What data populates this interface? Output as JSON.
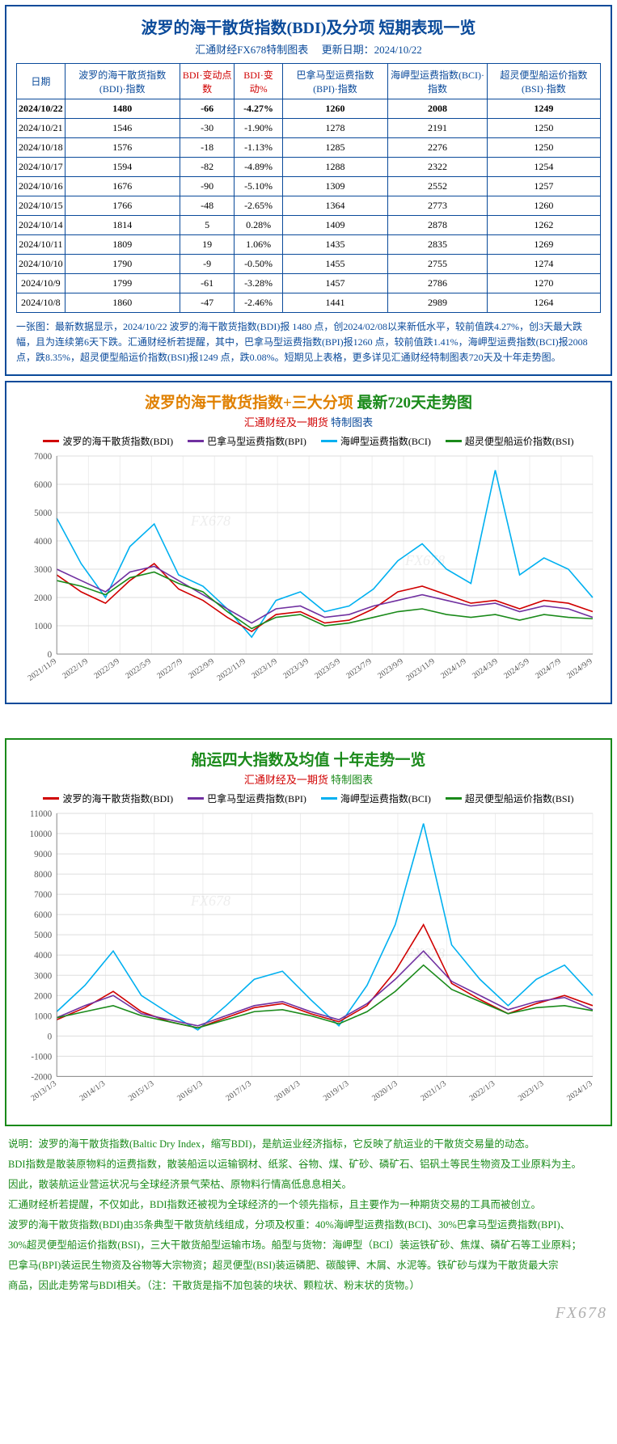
{
  "table_panel": {
    "title": "波罗的海干散货指数(BDI)及分项 短期表现一览",
    "subtitle_left": "汇通财经FX678特制图表",
    "subtitle_right_label": "更新日期：",
    "update_date": "2024/10/22",
    "columns": [
      "日期",
      "波罗的海干散货指数(BDI)·指数",
      "BDI·变动点数",
      "BDI·变动%",
      "巴拿马型运费指数(BPI)·指数",
      "海岬型运费指数(BCI)·指数",
      "超灵便型船运价指数(BSI)·指数"
    ],
    "red_cols": [
      2,
      3
    ],
    "rows": [
      {
        "date": "2024/10/22",
        "bdi": "1480",
        "chg": "-66",
        "pct": "-4.27%",
        "bpi": "1260",
        "bci": "2008",
        "bsi": "1249",
        "hl": true
      },
      {
        "date": "2024/10/21",
        "bdi": "1546",
        "chg": "-30",
        "pct": "-1.90%",
        "bpi": "1278",
        "bci": "2191",
        "bsi": "1250"
      },
      {
        "date": "2024/10/18",
        "bdi": "1576",
        "chg": "-18",
        "pct": "-1.13%",
        "bpi": "1285",
        "bci": "2276",
        "bsi": "1250"
      },
      {
        "date": "2024/10/17",
        "bdi": "1594",
        "chg": "-82",
        "pct": "-4.89%",
        "bpi": "1288",
        "bci": "2322",
        "bsi": "1254"
      },
      {
        "date": "2024/10/16",
        "bdi": "1676",
        "chg": "-90",
        "pct": "-5.10%",
        "bpi": "1309",
        "bci": "2552",
        "bsi": "1257"
      },
      {
        "date": "2024/10/15",
        "bdi": "1766",
        "chg": "-48",
        "pct": "-2.65%",
        "bpi": "1364",
        "bci": "2773",
        "bsi": "1260"
      },
      {
        "date": "2024/10/14",
        "bdi": "1814",
        "chg": "5",
        "pct": "0.28%",
        "bpi": "1409",
        "bci": "2878",
        "bsi": "1262"
      },
      {
        "date": "2024/10/11",
        "bdi": "1809",
        "chg": "19",
        "pct": "1.06%",
        "bpi": "1435",
        "bci": "2835",
        "bsi": "1269"
      },
      {
        "date": "2024/10/10",
        "bdi": "1790",
        "chg": "-9",
        "pct": "-0.50%",
        "bpi": "1455",
        "bci": "2755",
        "bsi": "1274"
      },
      {
        "date": "2024/10/9",
        "bdi": "1799",
        "chg": "-61",
        "pct": "-3.28%",
        "bpi": "1457",
        "bci": "2786",
        "bsi": "1270"
      },
      {
        "date": "2024/10/8",
        "bdi": "1860",
        "chg": "-47",
        "pct": "-2.46%",
        "bpi": "1441",
        "bci": "2989",
        "bsi": "1264"
      }
    ],
    "note": "一张图：最新数据显示，2024/10/22 波罗的海干散货指数(BDI)报 1480 点，创2024/02/08以来新低水平，较前值跌4.27%，创3天最大跌幅，且为连续第6天下跌。汇通财经析若提醒，其中，巴拿马型运费指数(BPI)报1260 点，较前值跌1.41%，海岬型运费指数(BCI)报2008 点，跌8.35%，超灵便型船运价指数(BSI)报1249 点，跌0.08%。短期见上表格，更多详见汇通财经特制图表720天及十年走势图。"
  },
  "chart720": {
    "title_left": "波罗的海干散货指数+三大分项",
    "title_right": "最新720天走势图",
    "subtitle_left": "汇通财经及一期货",
    "subtitle_right": "特制图表",
    "legend": [
      {
        "label": "波罗的海干散货指数(BDI)",
        "color": "#d00000"
      },
      {
        "label": "巴拿马型运费指数(BPI)",
        "color": "#7030a0"
      },
      {
        "label": "海岬型运费指数(BCI)",
        "color": "#00b0f0"
      },
      {
        "label": "超灵便型船运价指数(BSI)",
        "color": "#1a8a1a"
      }
    ],
    "ylim": [
      0,
      7000
    ],
    "ytick_step": 1000,
    "x_labels": [
      "2021/11/9",
      "2022/1/9",
      "2022/3/9",
      "2022/5/9",
      "2022/7/9",
      "2022/9/9",
      "2022/11/9",
      "2023/1/9",
      "2023/3/9",
      "2023/5/9",
      "2023/7/9",
      "2023/9/9",
      "2023/11/9",
      "2024/1/9",
      "2024/3/9",
      "2024/5/9",
      "2024/7/9",
      "2024/9/9"
    ],
    "series": {
      "bdi": [
        2800,
        2200,
        1800,
        2600,
        3200,
        2300,
        1900,
        1300,
        800,
        1400,
        1500,
        1100,
        1200,
        1600,
        2200,
        2400,
        2100,
        1800,
        1900,
        1600,
        1900,
        1800,
        1500
      ],
      "bpi": [
        3000,
        2600,
        2200,
        2900,
        3100,
        2600,
        2100,
        1600,
        1100,
        1600,
        1700,
        1300,
        1400,
        1700,
        1900,
        2100,
        1900,
        1700,
        1800,
        1500,
        1700,
        1600,
        1300
      ],
      "bci": [
        4800,
        3200,
        2000,
        3800,
        4600,
        2800,
        2400,
        1600,
        600,
        1900,
        2200,
        1500,
        1700,
        2300,
        3300,
        3900,
        3000,
        2500,
        6500,
        2800,
        3400,
        3000,
        2000
      ],
      "bsi": [
        2600,
        2400,
        2100,
        2700,
        2900,
        2500,
        2200,
        1500,
        900,
        1300,
        1400,
        1000,
        1100,
        1300,
        1500,
        1600,
        1400,
        1300,
        1400,
        1200,
        1400,
        1300,
        1250
      ]
    },
    "grid_color": "#dddddd",
    "axis_color": "#888888",
    "background": "#ffffff",
    "watermark": "FX678"
  },
  "chart10y": {
    "title": "船运四大指数及均值 十年走势一览",
    "subtitle_left": "汇通财经及一期货",
    "subtitle_right": "特制图表",
    "legend": [
      {
        "label": "波罗的海干散货指数(BDI)",
        "color": "#d00000"
      },
      {
        "label": "巴拿马型运费指数(BPI)",
        "color": "#7030a0"
      },
      {
        "label": "海岬型运费指数(BCI)",
        "color": "#00b0f0"
      },
      {
        "label": "超灵便型船运价指数(BSI)",
        "color": "#1a8a1a"
      }
    ],
    "ylim": [
      -2000,
      11000
    ],
    "ytick_step": 1000,
    "x_labels": [
      "2013/1/3",
      "2014/1/3",
      "2015/1/3",
      "2016/1/3",
      "2017/1/3",
      "2018/1/3",
      "2019/1/3",
      "2020/1/3",
      "2021/1/3",
      "2022/1/3",
      "2023/1/3",
      "2024/1/3"
    ],
    "series": {
      "bdi": [
        800,
        1400,
        2200,
        1200,
        700,
        400,
        900,
        1400,
        1600,
        1100,
        700,
        1500,
        3200,
        5500,
        2600,
        1800,
        1100,
        1600,
        2000,
        1500
      ],
      "bpi": [
        900,
        1500,
        2000,
        1100,
        800,
        500,
        1000,
        1500,
        1700,
        1200,
        800,
        1600,
        2800,
        4200,
        2700,
        2000,
        1300,
        1700,
        1900,
        1300
      ],
      "bci": [
        1200,
        2500,
        4200,
        2000,
        1100,
        300,
        1500,
        2800,
        3200,
        1800,
        500,
        2500,
        5500,
        10500,
        4500,
        2800,
        1500,
        2800,
        3500,
        2000
      ],
      "bsi": [
        900,
        1200,
        1500,
        1000,
        700,
        400,
        800,
        1200,
        1300,
        1000,
        600,
        1200,
        2200,
        3500,
        2300,
        1700,
        1100,
        1400,
        1500,
        1250
      ]
    },
    "grid_color": "#dddddd",
    "axis_color": "#888888",
    "background": "#ffffff",
    "watermark": "FX678"
  },
  "description": {
    "lines": [
      "说明：波罗的海干散货指数(Baltic Dry Index，缩写BDI)，是航运业经济指标，它反映了航运业的干散货交易量的动态。",
      "BDI指数是散装原物料的运费指数，散装船运以运输钢材、纸浆、谷物、煤、矿砂、磷矿石、铝矾土等民生物资及工业原料为主。",
      "因此，散装航运业营运状况与全球经济景气荣枯、原物料行情高低息息相关。",
      "汇通财经析若提醒，不仅如此，BDI指数还被视为全球经济的一个领先指标，且主要作为一种期货交易的工具而被创立。",
      "波罗的海干散货指数(BDI)由35条典型干散货航线组成，分项及权重：40%海岬型运费指数(BCI)、30%巴拿马型运费指数(BPI)、",
      "30%超灵便型船运价指数(BSI)，三大干散货船型运输市场。船型与货物：海岬型（BCI）装运铁矿砂、焦煤、磷矿石等工业原料；",
      "巴拿马(BPI)装运民生物资及谷物等大宗物资；超灵便型(BSI)装运磷肥、碳酸钾、木屑、水泥等。铁矿砂与煤为干散货最大宗",
      "商品，因此走势常与BDI相关。（注：干散货是指不加包装的块状、颗粒状、粉末状的货物。）"
    ]
  },
  "footer_mark": "FX678"
}
